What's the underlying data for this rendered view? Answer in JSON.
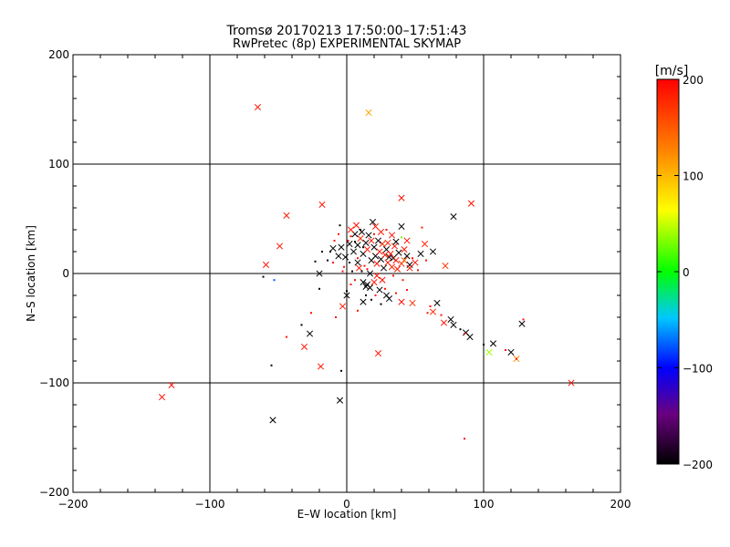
{
  "chart_data": {
    "type": "scatter",
    "title": "Tromsø 20170213 17:50:00–17:51:43",
    "subtitle": "RwPretec (8p) EXPERIMENTAL SKYMAP",
    "xlabel": "E–W location [km]",
    "ylabel": "N–S location [km]",
    "xlim": [
      -200,
      200
    ],
    "ylim": [
      -200,
      200
    ],
    "xticks": [
      -200,
      -100,
      0,
      100,
      200
    ],
    "yticks": [
      -200,
      -100,
      0,
      100,
      200
    ],
    "xtick_labels": [
      "−200",
      "−100",
      "0",
      "100",
      "200"
    ],
    "ytick_labels": [
      "−200",
      "−100",
      "0",
      "100",
      "200"
    ],
    "grid": true,
    "colorbar": {
      "label": "[m/s]",
      "range": [
        -200,
        200
      ],
      "ticks": [
        200,
        100,
        0,
        -100,
        -200
      ],
      "tick_labels": [
        "200",
        "100",
        "0",
        "−100",
        "−200"
      ],
      "colors": [
        "#000000",
        "#6a0080",
        "#0000ff",
        "#00c8ff",
        "#00ff00",
        "#ffff00",
        "#ff8000",
        "#ff0000"
      ]
    },
    "series": [
      {
        "name": "large-x",
        "marker": "x",
        "points": [
          [
            -65,
            152,
            190
          ],
          [
            16,
            147,
            110
          ],
          [
            -44,
            53,
            190
          ],
          [
            -18,
            63,
            190
          ],
          [
            40,
            69,
            190
          ],
          [
            91,
            64,
            190
          ],
          [
            -49,
            25,
            190
          ],
          [
            -59,
            8,
            190
          ],
          [
            -20,
            0,
            -200
          ],
          [
            40,
            43,
            -200
          ],
          [
            57,
            27,
            180
          ],
          [
            63,
            20,
            -200
          ],
          [
            72,
            7,
            170
          ],
          [
            78,
            52,
            -200
          ],
          [
            -3,
            -30,
            190
          ],
          [
            0,
            -20,
            -200
          ],
          [
            12,
            -26,
            -200
          ],
          [
            31,
            -23,
            -200
          ],
          [
            40,
            -26,
            190
          ],
          [
            48,
            -27,
            170
          ],
          [
            63,
            -35,
            180
          ],
          [
            66,
            -27,
            -200
          ],
          [
            71,
            -45,
            190
          ],
          [
            76,
            -42,
            -200
          ],
          [
            78,
            -47,
            -200
          ],
          [
            87,
            -54,
            -200
          ],
          [
            90,
            -58,
            -200
          ],
          [
            107,
            -64,
            -200
          ],
          [
            104,
            -72,
            40
          ],
          [
            120,
            -72,
            -200
          ],
          [
            124,
            -78,
            120
          ],
          [
            128,
            -46,
            -200
          ],
          [
            -27,
            -55,
            -200
          ],
          [
            -31,
            -67,
            190
          ],
          [
            -19,
            -85,
            190
          ],
          [
            23,
            -73,
            190
          ],
          [
            -5,
            -116,
            -200
          ],
          [
            -54,
            -134,
            -200
          ],
          [
            -128,
            -102,
            190
          ],
          [
            -135,
            -113,
            190
          ],
          [
            164,
            -100,
            190
          ],
          [
            5,
            20,
            -200
          ],
          [
            8,
            26,
            -200
          ],
          [
            10,
            32,
            180
          ],
          [
            12,
            18,
            -200
          ],
          [
            14,
            28,
            -200
          ],
          [
            15,
            22,
            190
          ],
          [
            16,
            35,
            -200
          ],
          [
            18,
            12,
            -200
          ],
          [
            18,
            30,
            190
          ],
          [
            20,
            24,
            -200
          ],
          [
            21,
            16,
            -200
          ],
          [
            22,
            9,
            190
          ],
          [
            24,
            20,
            190
          ],
          [
            25,
            13,
            -200
          ],
          [
            26,
            27,
            180
          ],
          [
            27,
            5,
            -200
          ],
          [
            28,
            17,
            190
          ],
          [
            29,
            22,
            -200
          ],
          [
            30,
            10,
            190
          ],
          [
            31,
            15,
            -200
          ],
          [
            32,
            18,
            190
          ],
          [
            33,
            6,
            180
          ],
          [
            34,
            14,
            -200
          ],
          [
            35,
            25,
            190
          ],
          [
            36,
            12,
            190
          ],
          [
            38,
            19,
            -200
          ],
          [
            40,
            9,
            170
          ],
          [
            42,
            12,
            150
          ],
          [
            44,
            16,
            -200
          ],
          [
            46,
            8,
            -200
          ],
          [
            8,
            10,
            -200
          ],
          [
            6,
            36,
            -200
          ],
          [
            2,
            27,
            -200
          ],
          [
            -1,
            15,
            -200
          ],
          [
            -6,
            16,
            -200
          ],
          [
            -4,
            24,
            -200
          ],
          [
            9,
            5,
            190
          ],
          [
            12,
            -8,
            -200
          ],
          [
            14,
            -12,
            -200
          ],
          [
            15,
            -10,
            -200
          ],
          [
            17,
            -13,
            -200
          ],
          [
            20,
            -8,
            190
          ],
          [
            22,
            -2,
            190
          ],
          [
            24,
            -15,
            -200
          ],
          [
            26,
            -6,
            190
          ],
          [
            29,
            -20,
            -200
          ],
          [
            19,
            47,
            -200
          ],
          [
            21,
            43,
            190
          ],
          [
            25,
            38,
            190
          ],
          [
            33,
            35,
            190
          ],
          [
            36,
            29,
            -200
          ],
          [
            42,
            22,
            190
          ],
          [
            46,
            5,
            190
          ],
          [
            50,
            10,
            190
          ],
          [
            54,
            18,
            -200
          ],
          [
            -10,
            23,
            -200
          ],
          [
            7,
            44,
            190
          ],
          [
            3,
            40,
            190
          ],
          [
            11,
            38,
            -200
          ],
          [
            17,
            0,
            -200
          ],
          [
            23,
            30,
            -200
          ],
          [
            30,
            28,
            180
          ],
          [
            37,
            4,
            190
          ],
          [
            44,
            30,
            190
          ]
        ]
      },
      {
        "name": "small-dots",
        "marker": "dot",
        "points": [
          [
            -5,
            44,
            -200
          ],
          [
            3,
            34,
            190
          ],
          [
            10,
            40,
            -200
          ],
          [
            1,
            30,
            190
          ],
          [
            6,
            29,
            -200
          ],
          [
            8,
            14,
            190
          ],
          [
            2,
            10,
            -200
          ],
          [
            -2,
            6,
            190
          ],
          [
            4,
            2,
            -200
          ],
          [
            -3,
            2,
            190
          ],
          [
            11,
            2,
            -200
          ],
          [
            13,
            7,
            190
          ],
          [
            15,
            4,
            190
          ],
          [
            -10,
            10,
            190
          ],
          [
            -12,
            20,
            -200
          ],
          [
            -14,
            12,
            -200
          ],
          [
            -9,
            30,
            190
          ],
          [
            -6,
            36,
            190
          ],
          [
            12,
            24,
            -200
          ],
          [
            20,
            36,
            190
          ],
          [
            29,
            40,
            190
          ],
          [
            40,
            33,
            30
          ],
          [
            55,
            42,
            190
          ],
          [
            48,
            14,
            190
          ],
          [
            58,
            12,
            190
          ],
          [
            52,
            3,
            190
          ],
          [
            34,
            -2,
            190
          ],
          [
            28,
            -14,
            190
          ],
          [
            36,
            -18,
            190
          ],
          [
            44,
            -15,
            190
          ],
          [
            41,
            -6,
            190
          ],
          [
            6,
            -6,
            190
          ],
          [
            0,
            -16,
            -200
          ],
          [
            3,
            -10,
            190
          ],
          [
            14,
            -20,
            -200
          ],
          [
            18,
            -24,
            -200
          ],
          [
            21,
            -20,
            190
          ],
          [
            25,
            -28,
            -200
          ],
          [
            59,
            -36,
            190
          ],
          [
            61,
            -30,
            190
          ],
          [
            69,
            -38,
            190
          ],
          [
            83,
            -51,
            -200
          ],
          [
            86,
            -55,
            190
          ],
          [
            100,
            -65,
            -200
          ],
          [
            116,
            -70,
            190
          ],
          [
            129,
            -42,
            190
          ],
          [
            -33,
            -47,
            -200
          ],
          [
            -44,
            -58,
            190
          ],
          [
            -55,
            -84,
            -200
          ],
          [
            -4,
            -89,
            -200
          ],
          [
            -8,
            -40,
            190
          ],
          [
            -53,
            -6,
            -80
          ],
          [
            -61,
            -3,
            -200
          ],
          [
            -26,
            -36,
            190
          ],
          [
            -20,
            -14,
            -200
          ],
          [
            -23,
            11,
            -200
          ],
          [
            -18,
            20,
            -200
          ],
          [
            86,
            -151,
            190
          ],
          [
            124,
            -78,
            190
          ],
          [
            8,
            -34,
            190
          ]
        ]
      }
    ]
  }
}
